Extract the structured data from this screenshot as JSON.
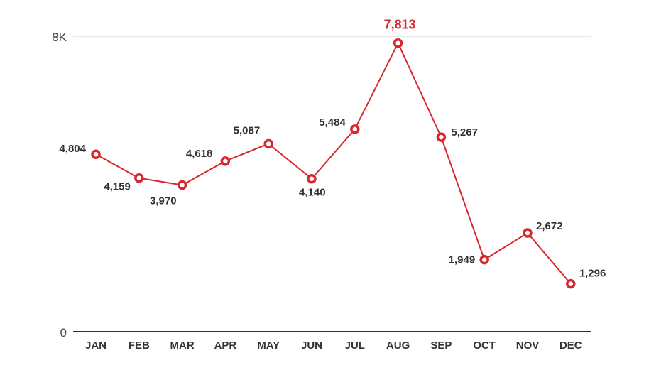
{
  "chart_data": {
    "type": "line",
    "categories": [
      "JAN",
      "FEB",
      "MAR",
      "APR",
      "MAY",
      "JUN",
      "JUL",
      "AUG",
      "SEP",
      "OCT",
      "NOV",
      "DEC"
    ],
    "values": [
      4804,
      4159,
      3970,
      4618,
      5087,
      4140,
      5484,
      7813,
      5267,
      1949,
      2672,
      1296
    ],
    "value_labels": [
      "4,804",
      "4,159",
      "3,970",
      "4,618",
      "5,087",
      "4,140",
      "5,484",
      "7,813",
      "5,267",
      "1,949",
      "2,672",
      "1,296"
    ],
    "highlight_index": 7,
    "ylim": [
      0,
      8000
    ],
    "y_ticks": [
      {
        "value": 0,
        "label": "0"
      },
      {
        "value": 8000,
        "label": "8K"
      }
    ],
    "title": "",
    "xlabel": "",
    "ylabel": "",
    "grid": "top-gridline-only",
    "legend": "none",
    "colors": {
      "line": "#d7282f",
      "marker_fill": "#ffffff",
      "highlight_label": "#d7282f",
      "label": "#333333",
      "axis": "#333333",
      "grid": "#cccccc"
    }
  }
}
